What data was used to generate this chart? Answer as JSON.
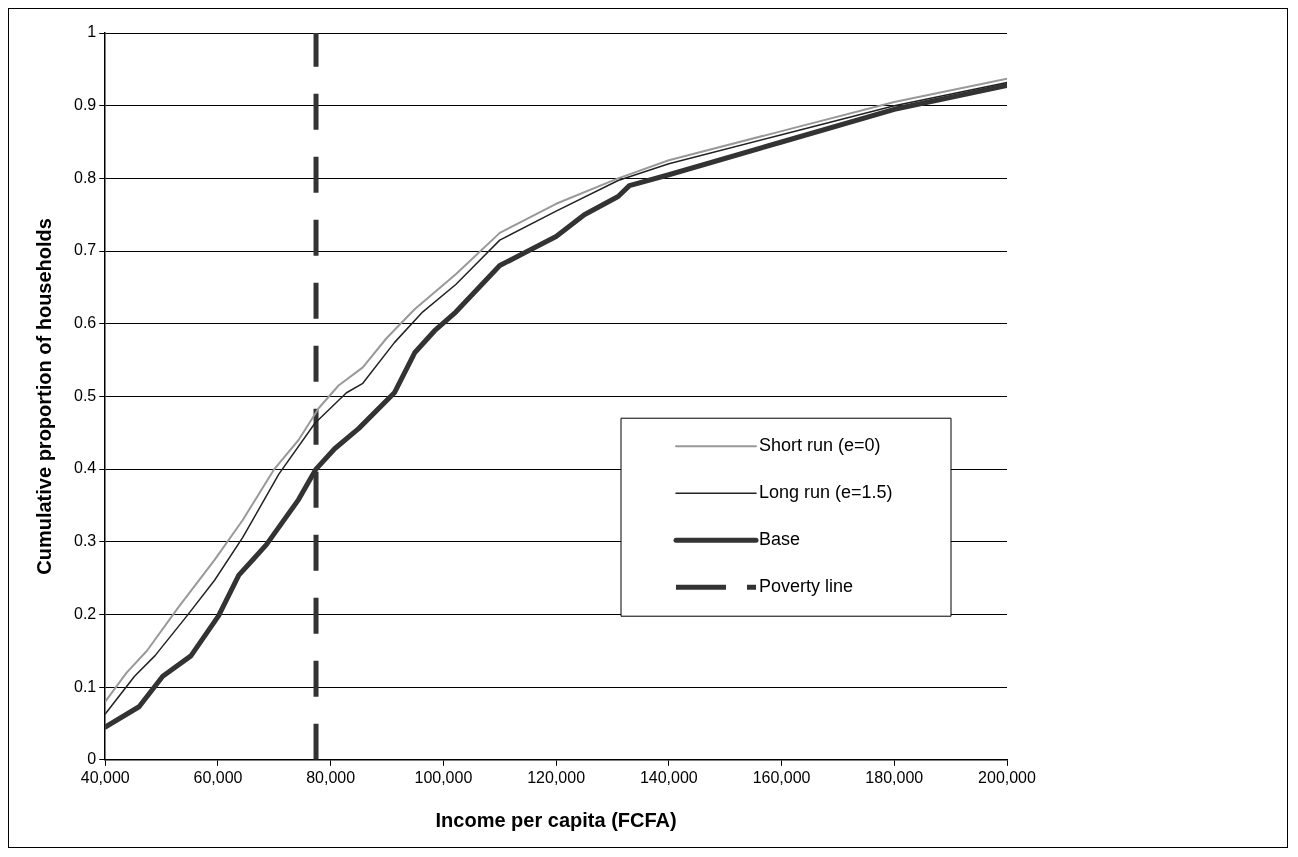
{
  "chart_data": {
    "type": "line",
    "xlabel": "Income per capita (FCFA)",
    "ylabel": "Cumulative proportion of households",
    "xlim": [
      40000,
      200000
    ],
    "xticks": [
      {
        "value": 40000,
        "label": "40,000"
      },
      {
        "value": 60000,
        "label": "60,000"
      },
      {
        "value": 80000,
        "label": "80,000"
      },
      {
        "value": 100000,
        "label": "100,000"
      },
      {
        "value": 120000,
        "label": "120,000"
      },
      {
        "value": 140000,
        "label": "140,000"
      },
      {
        "value": 160000,
        "label": "160,000"
      },
      {
        "value": 180000,
        "label": "180,000"
      },
      {
        "value": 200000,
        "label": "200,000"
      }
    ],
    "ylim": [
      0,
      1
    ],
    "yticks": [
      0,
      0.1,
      0.2,
      0.3,
      0.4,
      0.5,
      0.6,
      0.7,
      0.8,
      0.9,
      1
    ],
    "grid": "y",
    "legend": "right",
    "marker": "none",
    "line_style": "solid",
    "series": [
      {
        "name": "Short run (e=0)",
        "color": "#999999",
        "x": [
          40000,
          43800,
          47400,
          53000,
          59400,
          64400,
          70000,
          74300,
          77900,
          81400,
          85700,
          89900,
          94900,
          102200,
          110000,
          120000,
          131000,
          140000,
          160000,
          180000,
          200000
        ],
        "values": [
          0.08,
          0.12,
          0.15,
          0.21,
          0.275,
          0.33,
          0.4,
          0.44,
          0.484,
          0.515,
          0.54,
          0.58,
          0.62,
          0.668,
          0.725,
          0.765,
          0.8,
          0.825,
          0.865,
          0.905,
          0.937
        ]
      },
      {
        "name": "Long run (e=1.5)",
        "color": "#222222",
        "x": [
          40000,
          45200,
          48800,
          54500,
          59400,
          64400,
          70800,
          77200,
          82800,
          85700,
          91300,
          96300,
          102200,
          110000,
          120000,
          131000,
          140000,
          160000,
          180000,
          200000
        ],
        "values": [
          0.063,
          0.115,
          0.143,
          0.198,
          0.247,
          0.306,
          0.393,
          0.463,
          0.505,
          0.518,
          0.574,
          0.616,
          0.654,
          0.715,
          0.755,
          0.797,
          0.82,
          0.86,
          0.9,
          0.932
        ]
      },
      {
        "name": "Base",
        "color": "#333333",
        "x": [
          40000,
          46000,
          50200,
          55200,
          60100,
          63700,
          68600,
          74300,
          77400,
          80700,
          85000,
          91300,
          94900,
          98400,
          102200,
          110000,
          120000,
          125000,
          131000,
          133000,
          140000,
          160000,
          180000,
          200000
        ],
        "values": [
          0.045,
          0.073,
          0.115,
          0.143,
          0.198,
          0.254,
          0.296,
          0.358,
          0.4,
          0.428,
          0.456,
          0.505,
          0.56,
          0.59,
          0.616,
          0.68,
          0.72,
          0.75,
          0.775,
          0.79,
          0.805,
          0.85,
          0.895,
          0.928
        ]
      },
      {
        "name": "Poverty line",
        "color": "#333333",
        "line_style": "dashed",
        "x": [
          77400,
          77400
        ],
        "values": [
          0,
          1
        ]
      }
    ]
  }
}
